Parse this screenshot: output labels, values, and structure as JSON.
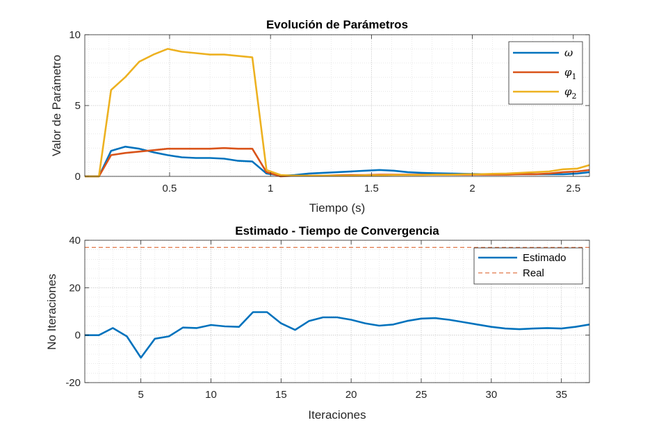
{
  "colors": {
    "blue": "#0072BD",
    "red": "#D95319",
    "yellow": "#EDB120",
    "dashed_red": "#D95319"
  },
  "chart_data": [
    {
      "type": "line",
      "title": "Evolución de Parámetros",
      "xlabel": "Tiempo (s)",
      "ylabel": "Valor de Parámetro",
      "xlim": [
        0.08,
        2.58
      ],
      "ylim": [
        0,
        10
      ],
      "xticks": [
        "0.5",
        "1",
        "1.5",
        "2",
        "2.5"
      ],
      "yticks": [
        "0",
        "5",
        "10"
      ],
      "xtick_values": [
        0.5,
        1,
        1.5,
        2,
        2.5
      ],
      "ytick_values": [
        0,
        5,
        10
      ],
      "grid": true,
      "minor_grid": true,
      "legend_position": "top-right",
      "series": [
        {
          "name": "ω",
          "legend_base": "ω",
          "legend_sub": "",
          "color": "#0072BD",
          "x": [
            0.08,
            0.15,
            0.21,
            0.28,
            0.35,
            0.42,
            0.49,
            0.56,
            0.63,
            0.7,
            0.77,
            0.84,
            0.91,
            0.98,
            1.05,
            1.12,
            1.19,
            1.26,
            1.33,
            1.4,
            1.47,
            1.54,
            1.61,
            1.68,
            1.75,
            1.82,
            1.89,
            1.96,
            2.03,
            2.1,
            2.17,
            2.24,
            2.31,
            2.38,
            2.45,
            2.52,
            2.58
          ],
          "y": [
            0,
            0,
            1.8,
            2.1,
            1.95,
            1.7,
            1.5,
            1.35,
            1.3,
            1.3,
            1.25,
            1.1,
            1.05,
            0.2,
            0.05,
            0.1,
            0.2,
            0.25,
            0.3,
            0.35,
            0.4,
            0.45,
            0.4,
            0.3,
            0.25,
            0.22,
            0.2,
            0.18,
            0.16,
            0.15,
            0.15,
            0.15,
            0.15,
            0.15,
            0.15,
            0.2,
            0.3
          ]
        },
        {
          "name": "φ1",
          "legend_base": "φ",
          "legend_sub": "1",
          "color": "#D95319",
          "x": [
            0.08,
            0.15,
            0.21,
            0.28,
            0.35,
            0.42,
            0.49,
            0.56,
            0.63,
            0.7,
            0.77,
            0.84,
            0.91,
            0.98,
            1.05,
            1.12,
            1.19,
            1.26,
            1.33,
            1.4,
            1.47,
            1.54,
            1.61,
            1.68,
            1.75,
            1.82,
            1.89,
            1.96,
            2.03,
            2.1,
            2.17,
            2.24,
            2.31,
            2.38,
            2.45,
            2.52,
            2.58
          ],
          "y": [
            0,
            0,
            1.5,
            1.65,
            1.75,
            1.85,
            1.95,
            1.95,
            1.95,
            1.95,
            2.0,
            1.95,
            1.95,
            0.3,
            0.0,
            0.05,
            0.05,
            0.05,
            0.08,
            0.1,
            0.1,
            0.12,
            0.12,
            0.12,
            0.12,
            0.12,
            0.12,
            0.12,
            0.12,
            0.12,
            0.12,
            0.15,
            0.15,
            0.2,
            0.3,
            0.35,
            0.45
          ]
        },
        {
          "name": "φ2",
          "legend_base": "φ",
          "legend_sub": "2",
          "color": "#EDB120",
          "x": [
            0.08,
            0.15,
            0.21,
            0.28,
            0.35,
            0.42,
            0.49,
            0.56,
            0.63,
            0.7,
            0.77,
            0.84,
            0.91,
            0.98,
            1.05,
            1.12,
            1.19,
            1.26,
            1.33,
            1.4,
            1.47,
            1.54,
            1.61,
            1.68,
            1.75,
            1.82,
            1.89,
            1.96,
            2.03,
            2.1,
            2.17,
            2.24,
            2.31,
            2.38,
            2.45,
            2.52,
            2.58
          ],
          "y": [
            0,
            0,
            6.1,
            7.0,
            8.1,
            8.6,
            9.0,
            8.8,
            8.7,
            8.6,
            8.6,
            8.5,
            8.4,
            0.45,
            0.1,
            0.05,
            0.05,
            0.05,
            0.05,
            0.05,
            0.08,
            0.08,
            0.1,
            0.1,
            0.1,
            0.12,
            0.12,
            0.15,
            0.15,
            0.18,
            0.2,
            0.25,
            0.3,
            0.35,
            0.5,
            0.55,
            0.8
          ]
        }
      ]
    },
    {
      "type": "line",
      "title": "Estimado - Tiempo de Convergencia",
      "xlabel": "Iteraciones",
      "ylabel": "No Iteraciones",
      "xlim": [
        1,
        37
      ],
      "ylim": [
        -20,
        40
      ],
      "xticks": [
        "5",
        "10",
        "15",
        "20",
        "25",
        "30",
        "35"
      ],
      "yticks": [
        "-20",
        "0",
        "20",
        "40"
      ],
      "xtick_values": [
        5,
        10,
        15,
        20,
        25,
        30,
        35
      ],
      "ytick_values": [
        -20,
        0,
        20,
        40
      ],
      "grid": true,
      "minor_grid": true,
      "legend_position": "top-right",
      "series": [
        {
          "name": "Estimado",
          "color": "#0072BD",
          "style": "solid",
          "x": [
            1,
            2,
            3,
            4,
            5,
            6,
            7,
            8,
            9,
            10,
            11,
            12,
            13,
            14,
            15,
            16,
            17,
            18,
            19,
            20,
            21,
            22,
            23,
            24,
            25,
            26,
            27,
            28,
            29,
            30,
            31,
            32,
            33,
            34,
            35,
            36,
            37
          ],
          "y": [
            0,
            0,
            3,
            -0.5,
            -9.5,
            -1.5,
            -0.5,
            3.2,
            3.0,
            4.3,
            3.7,
            3.5,
            9.7,
            9.7,
            5.0,
            2.2,
            6.0,
            7.5,
            7.5,
            6.5,
            5.0,
            4.0,
            4.5,
            6.0,
            7.0,
            7.2,
            6.5,
            5.5,
            4.5,
            3.5,
            2.8,
            2.5,
            2.8,
            3.0,
            2.8,
            3.5,
            4.5
          ]
        },
        {
          "name": "Real",
          "color": "#D95319",
          "style": "dashed",
          "x": [
            1,
            37
          ],
          "y": [
            37,
            37
          ]
        }
      ]
    }
  ]
}
